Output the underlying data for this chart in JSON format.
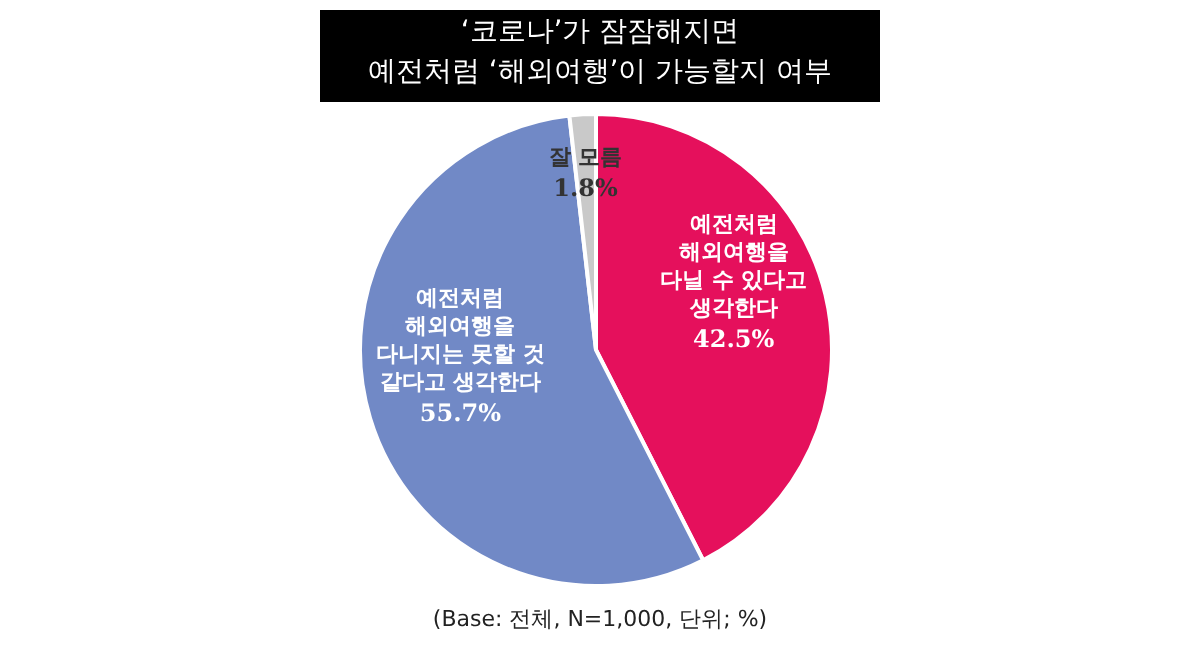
{
  "chart_data": {
    "type": "pie",
    "title": [
      "‘코로나’가 잠잠해지면",
      "예전처럼 ‘해외여행’이 가능할지 여부"
    ],
    "categories": [
      "예전처럼\n해외여행을\n다닐 수 있다고\n생각한다",
      "예전처럼\n해외여행을\n다니지는 못할 것\n같다고 생각한다",
      "잘 모름"
    ],
    "values": [
      42.5,
      55.7,
      1.8
    ],
    "value_labels": [
      "42.5%",
      "55.7%",
      "1.8%"
    ],
    "colors": [
      "#e5105c",
      "#7189c6",
      "#c9c9c9"
    ],
    "annotations": [
      "(Base: 전체, N=1,000, 단위; %)"
    ]
  }
}
